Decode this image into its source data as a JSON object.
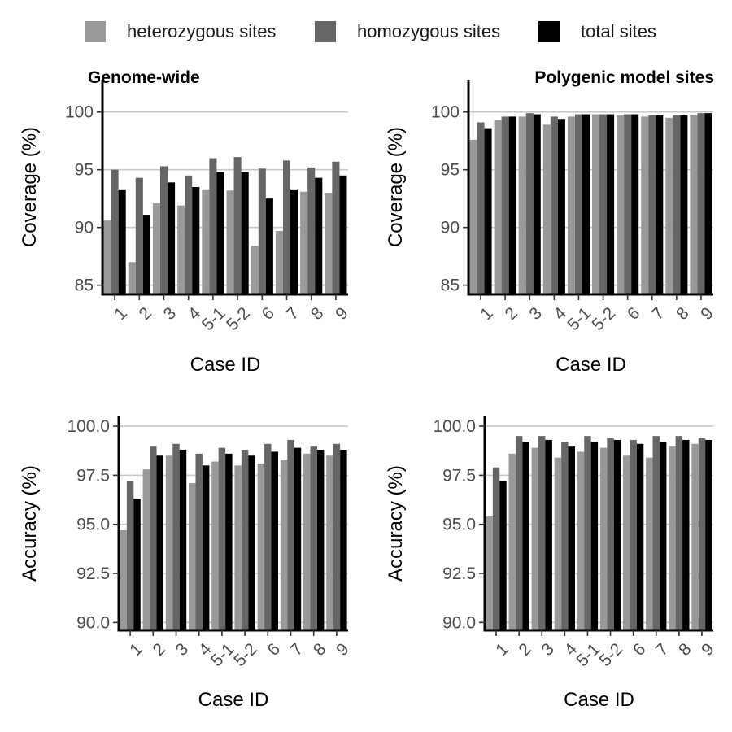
{
  "legend": {
    "items": [
      {
        "label": "heterozygous sites",
        "color": "#999999"
      },
      {
        "label": "homozygous sites",
        "color": "#666666"
      },
      {
        "label": "total sites",
        "color": "#000000"
      }
    ]
  },
  "chart_data": [
    {
      "type": "bar",
      "title": "Genome-wide",
      "xlabel": "Case ID",
      "ylabel": "Coverage (%)",
      "ylim": [
        84.2,
        102.8
      ],
      "yticks": [
        "85",
        "90",
        "95",
        "100"
      ],
      "grid": true,
      "categories": [
        "1",
        "2",
        "3",
        "4",
        "5-1",
        "5-2",
        "6",
        "7",
        "8",
        "9"
      ],
      "series": [
        {
          "name": "heterozygous sites",
          "color": "#999999",
          "values": [
            90.6,
            87.0,
            92.1,
            91.9,
            93.3,
            93.2,
            88.4,
            89.7,
            93.1,
            93.0
          ]
        },
        {
          "name": "homozygous sites",
          "color": "#666666",
          "values": [
            95.0,
            94.3,
            95.3,
            94.5,
            96.0,
            96.1,
            95.1,
            95.8,
            95.2,
            95.7
          ]
        },
        {
          "name": "total sites",
          "color": "#000000",
          "values": [
            93.3,
            91.1,
            93.9,
            93.5,
            94.8,
            94.8,
            92.5,
            93.3,
            94.3,
            94.5
          ]
        }
      ]
    },
    {
      "type": "bar",
      "title": "Polygenic model sites",
      "xlabel": "Case ID",
      "ylabel": "Coverage (%)",
      "ylim": [
        84.2,
        102.8
      ],
      "yticks": [
        "85",
        "90",
        "95",
        "100"
      ],
      "grid": true,
      "categories": [
        "1",
        "2",
        "3",
        "4",
        "5-1",
        "5-2",
        "6",
        "7",
        "8",
        "9"
      ],
      "series": [
        {
          "name": "heterozygous sites",
          "color": "#999999",
          "values": [
            97.6,
            99.3,
            99.6,
            98.9,
            99.6,
            99.8,
            99.7,
            99.6,
            99.5,
            99.7
          ]
        },
        {
          "name": "homozygous sites",
          "color": "#666666",
          "values": [
            99.1,
            99.6,
            99.9,
            99.6,
            99.8,
            99.8,
            99.8,
            99.7,
            99.7,
            99.9
          ]
        },
        {
          "name": "total sites",
          "color": "#000000",
          "values": [
            98.6,
            99.6,
            99.8,
            99.4,
            99.8,
            99.8,
            99.8,
            99.7,
            99.7,
            99.9
          ]
        }
      ]
    },
    {
      "type": "bar",
      "title": "",
      "xlabel": "Case ID",
      "ylabel": "Accuracy (%)",
      "ylim": [
        89.6,
        100.5
      ],
      "yticks": [
        "90.0",
        "92.5",
        "95.0",
        "97.5",
        "100.0"
      ],
      "grid": true,
      "categories": [
        "1",
        "2",
        "3",
        "4",
        "5-1",
        "5-2",
        "6",
        "7",
        "8",
        "9"
      ],
      "series": [
        {
          "name": "heterozygous sites",
          "color": "#999999",
          "values": [
            94.7,
            97.8,
            98.5,
            97.1,
            98.2,
            98.0,
            98.1,
            98.3,
            98.6,
            98.5
          ]
        },
        {
          "name": "homozygous sites",
          "color": "#666666",
          "values": [
            97.2,
            99.0,
            99.1,
            98.6,
            98.9,
            98.8,
            99.1,
            99.3,
            99.0,
            99.1
          ]
        },
        {
          "name": "total sites",
          "color": "#000000",
          "values": [
            96.3,
            98.5,
            98.8,
            98.0,
            98.6,
            98.5,
            98.7,
            98.9,
            98.8,
            98.8
          ]
        }
      ]
    },
    {
      "type": "bar",
      "title": "",
      "xlabel": "Case ID",
      "ylabel": "Accuracy (%)",
      "ylim": [
        89.6,
        100.5
      ],
      "yticks": [
        "90.0",
        "92.5",
        "95.0",
        "97.5",
        "100.0"
      ],
      "grid": true,
      "categories": [
        "1",
        "2",
        "3",
        "4",
        "5-1",
        "5-2",
        "6",
        "7",
        "8",
        "9"
      ],
      "series": [
        {
          "name": "heterozygous sites",
          "color": "#999999",
          "values": [
            95.4,
            98.6,
            98.9,
            98.4,
            98.7,
            98.9,
            98.5,
            98.4,
            99.0,
            99.1
          ]
        },
        {
          "name": "homozygous sites",
          "color": "#666666",
          "values": [
            97.9,
            99.5,
            99.5,
            99.2,
            99.5,
            99.4,
            99.3,
            99.5,
            99.5,
            99.4
          ]
        },
        {
          "name": "total sites",
          "color": "#000000",
          "values": [
            97.2,
            99.2,
            99.3,
            99.0,
            99.2,
            99.3,
            99.1,
            99.2,
            99.3,
            99.3
          ]
        }
      ]
    }
  ]
}
